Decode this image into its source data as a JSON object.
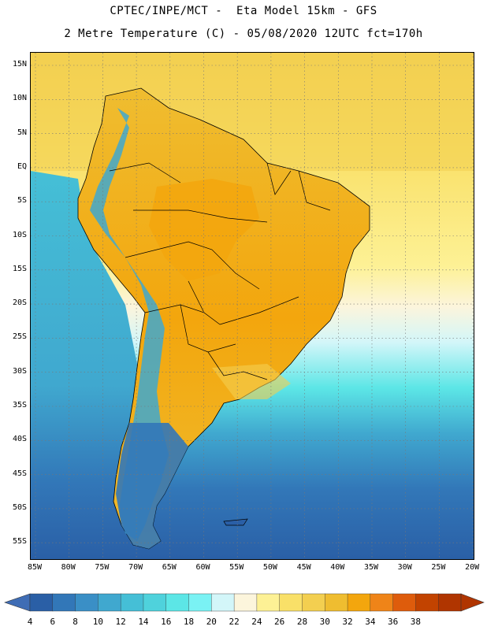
{
  "header": {
    "title_line1": "CPTEC/INPE/MCT -  Eta Model 15km - GFS",
    "title_line2": "2 Metre Temperature (C) - 05/08/2020 12UTC fct=170h"
  },
  "map": {
    "lat_labels": [
      "15N",
      "10N",
      "5N",
      "EQ",
      "5S",
      "10S",
      "15S",
      "20S",
      "25S",
      "30S",
      "35S",
      "40S",
      "45S",
      "50S",
      "55S"
    ],
    "lon_labels": [
      "85W",
      "80W",
      "75W",
      "70W",
      "65W",
      "60W",
      "55W",
      "50W",
      "45W",
      "40W",
      "35W",
      "30W",
      "25W",
      "20W"
    ],
    "grid": "dotted"
  },
  "colorbar": {
    "labels": [
      "4",
      "6",
      "8",
      "10",
      "12",
      "14",
      "16",
      "18",
      "20",
      "22",
      "24",
      "26",
      "28",
      "30",
      "32",
      "34",
      "36",
      "38"
    ],
    "colors": [
      "#2a5fa6",
      "#3277b8",
      "#3a8fc6",
      "#40a8cf",
      "#45bfd6",
      "#4fd2dc",
      "#5ce6e6",
      "#7af2f4",
      "#d3f6f9",
      "#fcf5dc",
      "#fdf195",
      "#f9e068",
      "#f3cf50",
      "#efbd30",
      "#f3a60d",
      "#ef8418",
      "#de5c0c",
      "#c24300",
      "#b03500"
    ],
    "under_color": "#3f6db5",
    "over_color": "#b03500"
  }
}
